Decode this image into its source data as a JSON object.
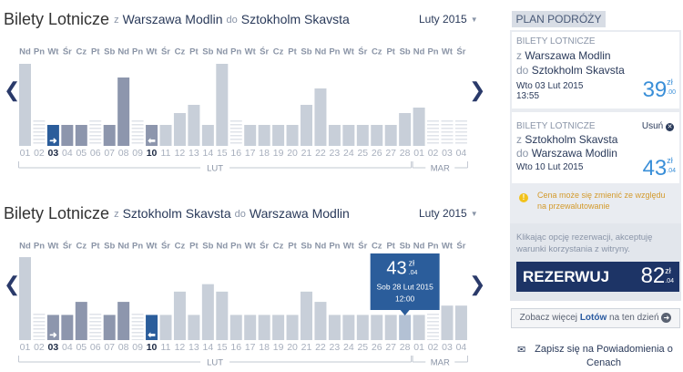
{
  "calendars": [
    {
      "title": "Bilety Lotnicze",
      "from": "z",
      "origin": "Warszawa Modlin",
      "to": "do",
      "destination": "Sztokholm Skavsta",
      "month": "Luty 2015",
      "weekdays": [
        "Nd",
        "Pn",
        "Wt",
        "Śr",
        "Cz",
        "Pt",
        "Sb",
        "Nd",
        "Pn",
        "Wt",
        "Śr",
        "Cz",
        "Pt",
        "Sb",
        "Nd",
        "Pn",
        "Wt",
        "Śr",
        "Cz",
        "Pt",
        "Sb",
        "Nd",
        "Pn",
        "Wt",
        "Śr",
        "Cz",
        "Pt",
        "Sb",
        "Nd",
        "Pn",
        "Wt",
        "Śr"
      ],
      "dates": [
        "01",
        "02",
        "03",
        "04",
        "05",
        "06",
        "07",
        "08",
        "09",
        "10",
        "11",
        "12",
        "13",
        "14",
        "15",
        "16",
        "17",
        "18",
        "19",
        "20",
        "21",
        "22",
        "23",
        "24",
        "25",
        "26",
        "27",
        "28",
        "01",
        "02",
        "03",
        "04"
      ],
      "months": [
        "LUT",
        "MAR"
      ],
      "values": [
        90,
        null,
        23,
        23,
        23,
        null,
        23,
        75,
        null,
        23,
        23,
        36,
        45,
        23,
        90,
        null,
        23,
        23,
        23,
        23,
        45,
        63,
        23,
        23,
        23,
        23,
        23,
        36,
        42,
        null,
        null,
        null
      ],
      "ylim": [
        0,
        92
      ],
      "color": "#c8cfd9",
      "range_color": "#8d96ad",
      "selected_color": "#2b5d9b",
      "selected": 2,
      "range": [
        2,
        9
      ]
    },
    {
      "title": "Bilety Lotnicze",
      "from": "z",
      "origin": "Sztokholm Skavsta",
      "to": "do",
      "destination": "Warszawa Modlin",
      "month": "Luty 2015",
      "weekdays": [
        "Nd",
        "Pn",
        "Wt",
        "Śr",
        "Cz",
        "Pt",
        "Sb",
        "Nd",
        "Pn",
        "Wt",
        "Śr",
        "Cz",
        "Pt",
        "Sb",
        "Nd",
        "Pn",
        "Wt",
        "Śr",
        "Cz",
        "Pt",
        "Sb",
        "Nd",
        "Pn",
        "Wt",
        "Śr",
        "Cz",
        "Pt",
        "Sb",
        "Nd",
        "Pn",
        "Wt",
        "Śr"
      ],
      "dates": [
        "01",
        "02",
        "03",
        "04",
        "05",
        "06",
        "07",
        "08",
        "09",
        "10",
        "11",
        "12",
        "13",
        "14",
        "15",
        "16",
        "17",
        "18",
        "19",
        "20",
        "21",
        "22",
        "23",
        "24",
        "25",
        "26",
        "27",
        "28",
        "01",
        "02",
        "03",
        "04"
      ],
      "months": [
        "LUT",
        "MAR"
      ],
      "values": [
        89,
        null,
        27,
        27,
        41,
        null,
        27,
        41,
        null,
        27,
        27,
        52,
        27,
        60,
        52,
        27,
        27,
        27,
        27,
        27,
        52,
        41,
        27,
        27,
        27,
        27,
        27,
        27,
        27,
        null,
        37,
        37
      ],
      "ylim": [
        0,
        90
      ],
      "color": "#c8cfd9",
      "range_color": "#8d96ad",
      "selected_color": "#2b5d9b",
      "selected": 9,
      "range": [
        2,
        9
      ],
      "tooltip": {
        "index": 27,
        "price": "43",
        "currency": "zł",
        "cents": ".04",
        "date": "Sob 28 Lut 2015",
        "time": "12:00"
      }
    }
  ],
  "plan": {
    "header": "PLAN PODRÓŻY",
    "legs": [
      {
        "label": "BILETY LOTNICZE",
        "from": "z",
        "origin": "Warszawa Modlin",
        "to": "do",
        "destination": "Sztokholm Skavsta",
        "date": "Wto 03 Lut 2015",
        "time": "13:55",
        "price": "39",
        "currency": "zł",
        "cents": ".00"
      },
      {
        "label": "BILETY LOTNICZE",
        "remove": "Usuń",
        "from": "z",
        "origin": "Sztokholm Skavsta",
        "to": "do",
        "destination": "Warszawa Modlin",
        "date": "Wto 10 Lut 2015",
        "price": "43",
        "currency": "zł",
        "cents": ".04"
      }
    ],
    "warning": "Cena może się zmienić ze względu na przewalutowanie",
    "terms": "Klikając opcję rezerwacji, akceptuję warunki korzystania z witryny.",
    "book": {
      "label": "REZERWUJ",
      "price": "82",
      "currency": "zł",
      "cents": ".04"
    },
    "more": {
      "before": "Zobacz więcej",
      "link": "Lotów",
      "after": "na ten dzień"
    },
    "subscribe": "Zapisz się na Powiadomienia o Cenach"
  }
}
